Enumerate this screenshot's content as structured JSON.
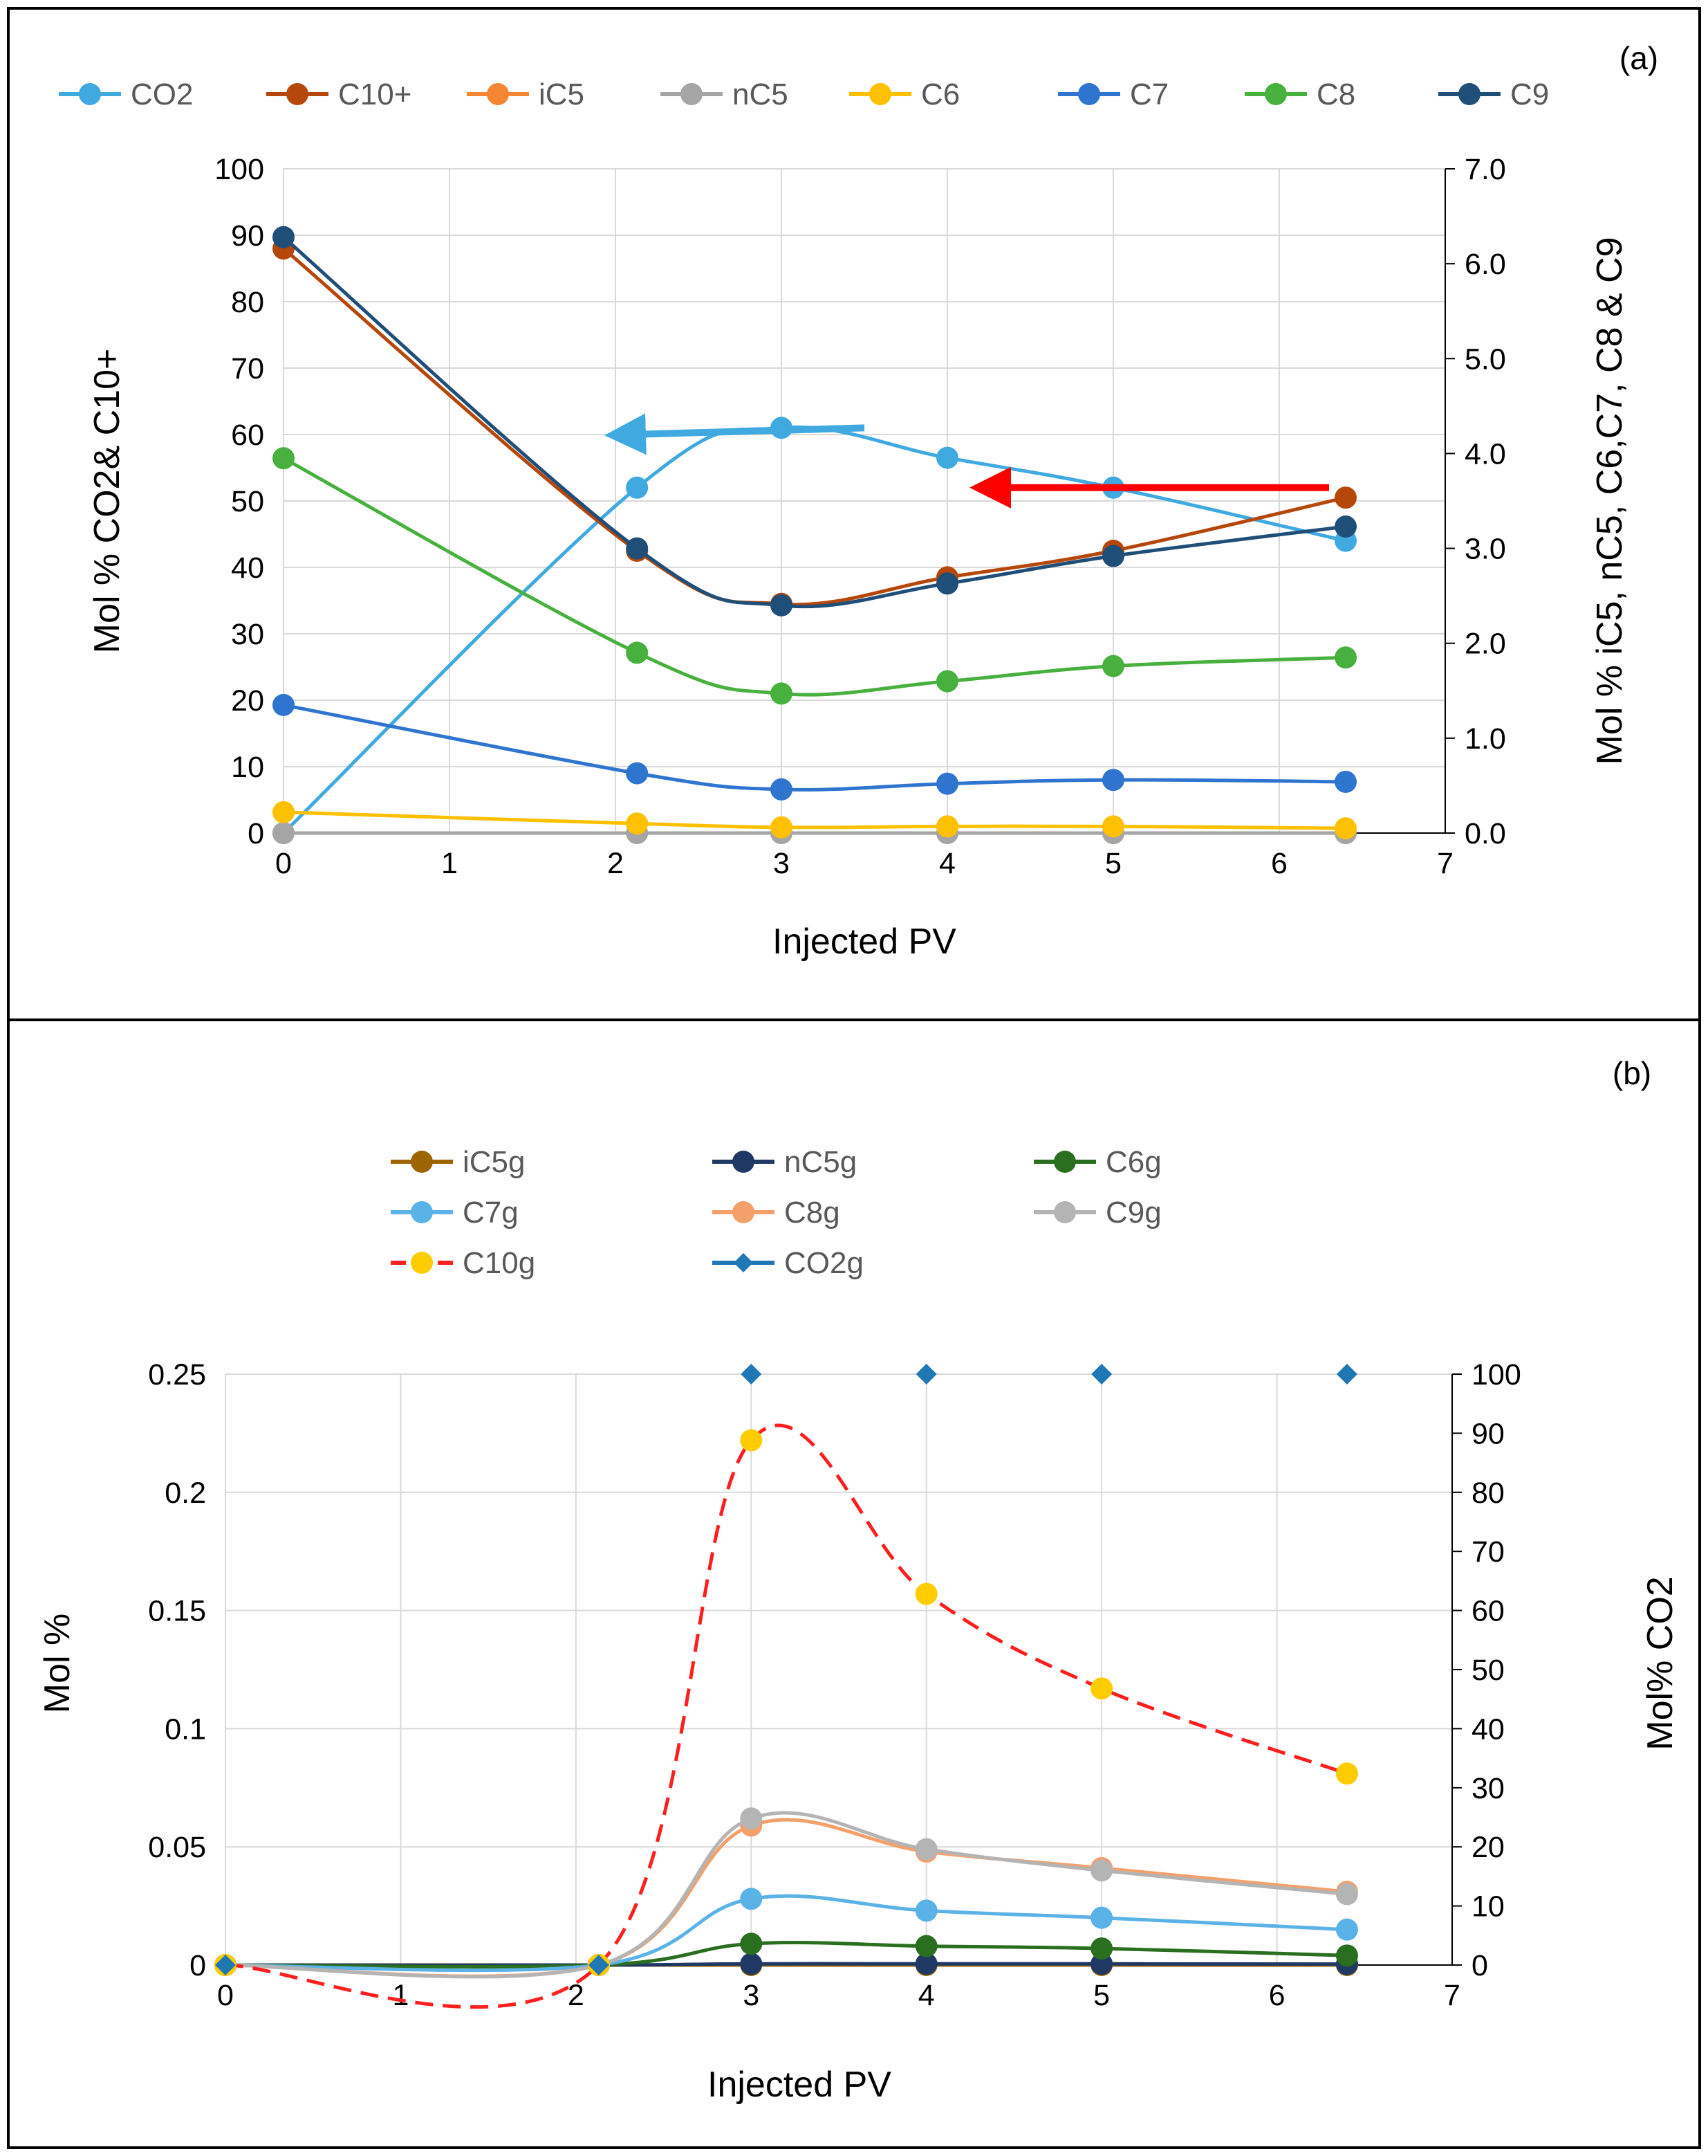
{
  "chart_data": [
    {
      "panel": "(a)",
      "type": "line",
      "xlabel": "Injected PV",
      "ylabel": "Mol % CO2& C10+",
      "y2label": "Mol % iC5, nC5, C6,C7, C8 & C9",
      "xlim": [
        0,
        7
      ],
      "xticks": [
        "0",
        "1",
        "2",
        "3",
        "4",
        "5",
        "6",
        "7"
      ],
      "ylim": [
        0,
        100
      ],
      "yticks": [
        "0",
        "10",
        "20",
        "30",
        "40",
        "50",
        "60",
        "70",
        "80",
        "90",
        "100"
      ],
      "y2lim": [
        0,
        7
      ],
      "y2ticks": [
        "0.0",
        "1.0",
        "2.0",
        "3.0",
        "4.0",
        "5.0",
        "6.0",
        "7.0"
      ],
      "grid": true,
      "legend_position": "top",
      "series": [
        {
          "name": "CO2",
          "axis": "left",
          "color": "#3fa9e0",
          "x": [
            0,
            2.13,
            3,
            4,
            5,
            6.4
          ],
          "values": [
            0,
            52,
            61,
            56.5,
            52,
            44
          ]
        },
        {
          "name": "C10+",
          "axis": "left",
          "color": "#b5470b",
          "x": [
            0,
            2.13,
            3,
            4,
            5,
            6.4
          ],
          "values": [
            88,
            42.5,
            34.5,
            38.5,
            42.5,
            50.5
          ]
        },
        {
          "name": "iC5",
          "axis": "right",
          "color": "#f58634",
          "x": [
            0,
            2.13,
            3,
            4,
            5,
            6.4
          ],
          "values": [
            0,
            0,
            0,
            0,
            0,
            0
          ]
        },
        {
          "name": "nC5",
          "axis": "right",
          "color": "#a5a5a5",
          "x": [
            0,
            2.13,
            3,
            4,
            5,
            6.4
          ],
          "values": [
            0,
            0,
            0,
            0,
            0,
            0
          ]
        },
        {
          "name": "C6",
          "axis": "right",
          "color": "#ffc000",
          "x": [
            0,
            2.13,
            3,
            4,
            5,
            6.4
          ],
          "values": [
            0.22,
            0.1,
            0.06,
            0.07,
            0.07,
            0.05
          ]
        },
        {
          "name": "C7",
          "axis": "right",
          "color": "#2f75d0",
          "x": [
            0,
            2.13,
            3,
            4,
            5,
            6.4
          ],
          "values": [
            1.35,
            0.63,
            0.46,
            0.52,
            0.56,
            0.54
          ]
        },
        {
          "name": "C8",
          "axis": "right",
          "color": "#48b03e",
          "x": [
            0,
            2.13,
            3,
            4,
            5,
            6.4
          ],
          "values": [
            3.95,
            1.9,
            1.47,
            1.6,
            1.76,
            1.85
          ]
        },
        {
          "name": "C9",
          "axis": "right",
          "color": "#1f4e79",
          "x": [
            0,
            2.13,
            3,
            4,
            5,
            6.4
          ],
          "values": [
            6.28,
            3.0,
            2.4,
            2.63,
            2.92,
            3.23
          ]
        }
      ],
      "annotations": [
        {
          "type": "arrow",
          "color": "#3fa9e0",
          "meaning": "CO2 series reads on left axis",
          "from": [
            3.5,
            61
          ],
          "to": [
            2.0,
            60
          ]
        },
        {
          "type": "arrow",
          "color": "#ff0000",
          "meaning": "C10+ series reads on left axis",
          "from": [
            6.3,
            52
          ],
          "to": [
            4.2,
            52
          ]
        }
      ]
    },
    {
      "panel": "(b)",
      "type": "line",
      "xlabel": "Injected PV",
      "ylabel": "Mol %",
      "y2label": "Mol% CO2",
      "xlim": [
        0,
        7
      ],
      "xticks": [
        "0",
        "1",
        "2",
        "3",
        "4",
        "5",
        "6",
        "7"
      ],
      "ylim": [
        0,
        0.25
      ],
      "yticks": [
        "0",
        "0.05",
        "0.1",
        "0.15",
        "0.2",
        "0.25"
      ],
      "y2lim": [
        0,
        100
      ],
      "y2ticks": [
        "0",
        "10",
        "20",
        "30",
        "40",
        "50",
        "60",
        "70",
        "80",
        "90",
        "100"
      ],
      "grid": true,
      "legend_position": "top",
      "series": [
        {
          "name": "iC5g",
          "axis": "left",
          "color": "#9c6500",
          "x": [
            0,
            2.13,
            3,
            4,
            5,
            6.4
          ],
          "values": [
            0,
            0,
            0,
            0,
            0,
            0
          ]
        },
        {
          "name": "nC5g",
          "axis": "left",
          "color": "#203864",
          "x": [
            0,
            2.13,
            3,
            4,
            5,
            6.4
          ],
          "values": [
            0,
            0,
            0.0005,
            0.0005,
            0.0005,
            0.0004
          ]
        },
        {
          "name": "C6g",
          "axis": "left",
          "color": "#2a6e1f",
          "x": [
            0,
            2.13,
            3,
            4,
            5,
            6.4
          ],
          "values": [
            0,
            0,
            0.009,
            0.008,
            0.007,
            0.004
          ]
        },
        {
          "name": "C7g",
          "axis": "left",
          "color": "#5bb2e6",
          "x": [
            0,
            2.13,
            3,
            4,
            5,
            6.4
          ],
          "values": [
            0,
            0,
            0.028,
            0.023,
            0.02,
            0.015
          ]
        },
        {
          "name": "C8g",
          "axis": "left",
          "color": "#f4a06b",
          "x": [
            0,
            2.13,
            3,
            4,
            5,
            6.4
          ],
          "values": [
            0,
            0,
            0.059,
            0.048,
            0.041,
            0.031
          ]
        },
        {
          "name": "C9g",
          "axis": "left",
          "color": "#b4b4b4",
          "x": [
            0,
            2.13,
            3,
            4,
            5,
            6.4
          ],
          "values": [
            0,
            0,
            0.062,
            0.049,
            0.04,
            0.03
          ]
        },
        {
          "name": "C10g",
          "axis": "left",
          "color": "#ff1f1f",
          "marker_color": "#ffcc00",
          "dashed": true,
          "x": [
            0,
            2.13,
            3,
            4,
            5,
            6.4
          ],
          "values": [
            0,
            0,
            0.222,
            0.157,
            0.117,
            0.081
          ]
        },
        {
          "name": "CO2g",
          "axis": "right",
          "color": "#1f77b4",
          "marker": "diamond",
          "x": [
            0,
            2.13,
            3,
            4,
            5,
            6.4
          ],
          "values": [
            0,
            0,
            100,
            100,
            100,
            100
          ]
        }
      ]
    }
  ]
}
